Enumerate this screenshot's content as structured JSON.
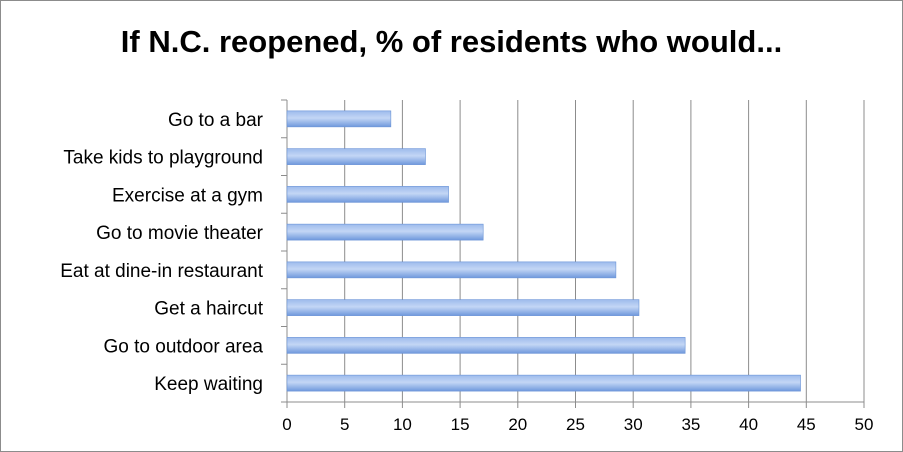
{
  "chart_data": {
    "type": "bar",
    "orientation": "horizontal",
    "title": "If N.C. reopened, % of residents who would...",
    "categories": [
      "Go to a bar",
      "Take kids to playground",
      "Exercise at a gym",
      "Go to movie theater",
      "Eat at dine-in restaurant",
      "Get a haircut",
      "Go to outdoor area",
      "Keep waiting"
    ],
    "values": [
      9,
      12,
      14,
      17,
      28.5,
      30.5,
      34.5,
      44.5
    ],
    "xlim": [
      0,
      50
    ],
    "xticks": [
      0,
      5,
      10,
      15,
      20,
      25,
      30,
      35,
      40,
      45,
      50
    ],
    "grid": "vertical",
    "legend": "none",
    "colors": {
      "bar": "#7fa6e3",
      "bar_light": "#b7cdf1",
      "grid": "#8c8c8c"
    }
  }
}
